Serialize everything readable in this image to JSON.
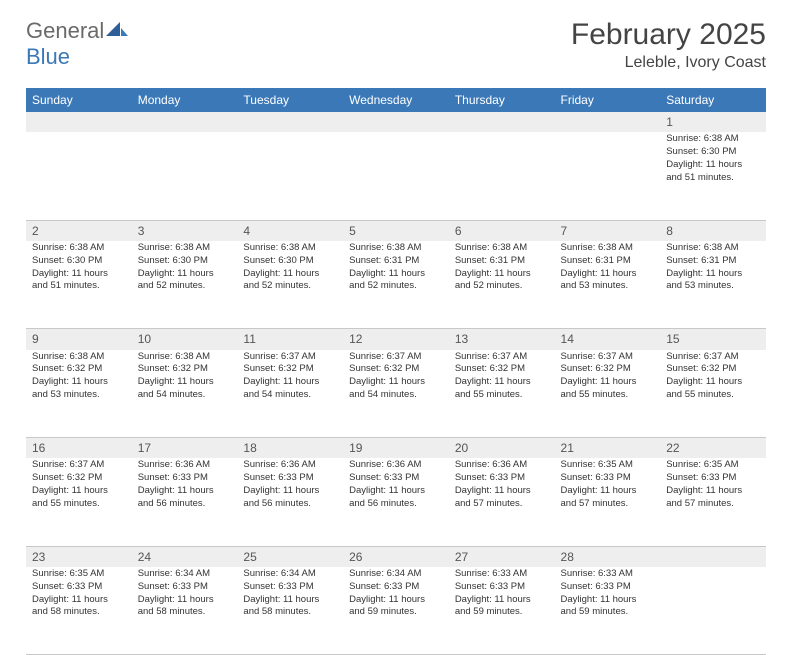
{
  "logo": {
    "text1": "General",
    "text2": "Blue"
  },
  "title": "February 2025",
  "location": "Leleble, Ivory Coast",
  "colors": {
    "header_blue": "#3b78b8",
    "daynum_bg": "#eeeeee",
    "border": "#c8c8c8",
    "text": "#333333",
    "title_text": "#444444"
  },
  "day_headers": [
    "Sunday",
    "Monday",
    "Tuesday",
    "Wednesday",
    "Thursday",
    "Friday",
    "Saturday"
  ],
  "weeks": [
    [
      null,
      null,
      null,
      null,
      null,
      null,
      {
        "n": "1",
        "sr": "Sunrise: 6:38 AM",
        "ss": "Sunset: 6:30 PM",
        "dl": "Daylight: 11 hours and 51 minutes."
      }
    ],
    [
      {
        "n": "2",
        "sr": "Sunrise: 6:38 AM",
        "ss": "Sunset: 6:30 PM",
        "dl": "Daylight: 11 hours and 51 minutes."
      },
      {
        "n": "3",
        "sr": "Sunrise: 6:38 AM",
        "ss": "Sunset: 6:30 PM",
        "dl": "Daylight: 11 hours and 52 minutes."
      },
      {
        "n": "4",
        "sr": "Sunrise: 6:38 AM",
        "ss": "Sunset: 6:30 PM",
        "dl": "Daylight: 11 hours and 52 minutes."
      },
      {
        "n": "5",
        "sr": "Sunrise: 6:38 AM",
        "ss": "Sunset: 6:31 PM",
        "dl": "Daylight: 11 hours and 52 minutes."
      },
      {
        "n": "6",
        "sr": "Sunrise: 6:38 AM",
        "ss": "Sunset: 6:31 PM",
        "dl": "Daylight: 11 hours and 52 minutes."
      },
      {
        "n": "7",
        "sr": "Sunrise: 6:38 AM",
        "ss": "Sunset: 6:31 PM",
        "dl": "Daylight: 11 hours and 53 minutes."
      },
      {
        "n": "8",
        "sr": "Sunrise: 6:38 AM",
        "ss": "Sunset: 6:31 PM",
        "dl": "Daylight: 11 hours and 53 minutes."
      }
    ],
    [
      {
        "n": "9",
        "sr": "Sunrise: 6:38 AM",
        "ss": "Sunset: 6:32 PM",
        "dl": "Daylight: 11 hours and 53 minutes."
      },
      {
        "n": "10",
        "sr": "Sunrise: 6:38 AM",
        "ss": "Sunset: 6:32 PM",
        "dl": "Daylight: 11 hours and 54 minutes."
      },
      {
        "n": "11",
        "sr": "Sunrise: 6:37 AM",
        "ss": "Sunset: 6:32 PM",
        "dl": "Daylight: 11 hours and 54 minutes."
      },
      {
        "n": "12",
        "sr": "Sunrise: 6:37 AM",
        "ss": "Sunset: 6:32 PM",
        "dl": "Daylight: 11 hours and 54 minutes."
      },
      {
        "n": "13",
        "sr": "Sunrise: 6:37 AM",
        "ss": "Sunset: 6:32 PM",
        "dl": "Daylight: 11 hours and 55 minutes."
      },
      {
        "n": "14",
        "sr": "Sunrise: 6:37 AM",
        "ss": "Sunset: 6:32 PM",
        "dl": "Daylight: 11 hours and 55 minutes."
      },
      {
        "n": "15",
        "sr": "Sunrise: 6:37 AM",
        "ss": "Sunset: 6:32 PM",
        "dl": "Daylight: 11 hours and 55 minutes."
      }
    ],
    [
      {
        "n": "16",
        "sr": "Sunrise: 6:37 AM",
        "ss": "Sunset: 6:32 PM",
        "dl": "Daylight: 11 hours and 55 minutes."
      },
      {
        "n": "17",
        "sr": "Sunrise: 6:36 AM",
        "ss": "Sunset: 6:33 PM",
        "dl": "Daylight: 11 hours and 56 minutes."
      },
      {
        "n": "18",
        "sr": "Sunrise: 6:36 AM",
        "ss": "Sunset: 6:33 PM",
        "dl": "Daylight: 11 hours and 56 minutes."
      },
      {
        "n": "19",
        "sr": "Sunrise: 6:36 AM",
        "ss": "Sunset: 6:33 PM",
        "dl": "Daylight: 11 hours and 56 minutes."
      },
      {
        "n": "20",
        "sr": "Sunrise: 6:36 AM",
        "ss": "Sunset: 6:33 PM",
        "dl": "Daylight: 11 hours and 57 minutes."
      },
      {
        "n": "21",
        "sr": "Sunrise: 6:35 AM",
        "ss": "Sunset: 6:33 PM",
        "dl": "Daylight: 11 hours and 57 minutes."
      },
      {
        "n": "22",
        "sr": "Sunrise: 6:35 AM",
        "ss": "Sunset: 6:33 PM",
        "dl": "Daylight: 11 hours and 57 minutes."
      }
    ],
    [
      {
        "n": "23",
        "sr": "Sunrise: 6:35 AM",
        "ss": "Sunset: 6:33 PM",
        "dl": "Daylight: 11 hours and 58 minutes."
      },
      {
        "n": "24",
        "sr": "Sunrise: 6:34 AM",
        "ss": "Sunset: 6:33 PM",
        "dl": "Daylight: 11 hours and 58 minutes."
      },
      {
        "n": "25",
        "sr": "Sunrise: 6:34 AM",
        "ss": "Sunset: 6:33 PM",
        "dl": "Daylight: 11 hours and 58 minutes."
      },
      {
        "n": "26",
        "sr": "Sunrise: 6:34 AM",
        "ss": "Sunset: 6:33 PM",
        "dl": "Daylight: 11 hours and 59 minutes."
      },
      {
        "n": "27",
        "sr": "Sunrise: 6:33 AM",
        "ss": "Sunset: 6:33 PM",
        "dl": "Daylight: 11 hours and 59 minutes."
      },
      {
        "n": "28",
        "sr": "Sunrise: 6:33 AM",
        "ss": "Sunset: 6:33 PM",
        "dl": "Daylight: 11 hours and 59 minutes."
      },
      null
    ]
  ]
}
